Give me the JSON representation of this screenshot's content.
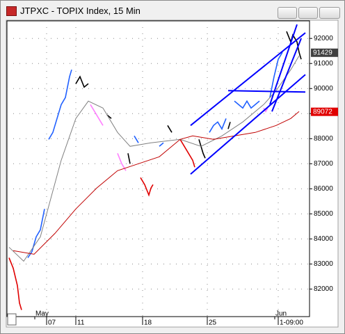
{
  "chart_data": {
    "type": "line",
    "title": "JTPXC - TOPIX Index, 15 Min",
    "xlim": [
      0,
      145
    ],
    "ylim": [
      80900,
      92700
    ],
    "yticks": [
      82000,
      83000,
      84000,
      85000,
      86000,
      87000,
      88000,
      89000,
      90000,
      91000,
      92000
    ],
    "xticks": [
      {
        "value": 19,
        "label": "07"
      },
      {
        "value": 33,
        "label": "11"
      },
      {
        "value": 65,
        "label": "18"
      },
      {
        "value": 96,
        "label": "25"
      },
      {
        "value": 130,
        "label": "1-09:00"
      }
    ],
    "month_labels": [
      {
        "value": 15,
        "label": "May"
      },
      {
        "value": 130,
        "label": "Jun"
      }
    ],
    "grid": true,
    "series": [
      {
        "color": "#e00000",
        "x": [
          1,
          3,
          5,
          6,
          7,
          8,
          64,
          66,
          68,
          69,
          70,
          71,
          83,
          85,
          89,
          90
        ],
        "values": [
          83250,
          82833,
          82139,
          81444,
          81167,
          null,
          86444,
          86167,
          85750,
          86028,
          86167,
          null,
          87972,
          87694,
          87139,
          86861
        ]
      },
      {
        "color": "#000000",
        "x": [
          33,
          35,
          37,
          39,
          40,
          48,
          50,
          51,
          58,
          59,
          60,
          77,
          79,
          80,
          92,
          94,
          95,
          96,
          106,
          107,
          108,
          134,
          136,
          137,
          139,
          140,
          141
        ],
        "values": [
          90194,
          90472,
          90056,
          90194,
          null,
          88944,
          88806,
          null,
          87417,
          87000,
          null,
          88528,
          88250,
          null,
          87972,
          87417,
          87222,
          null,
          88389,
          88667,
          null,
          92278,
          91861,
          92139,
          91861,
          91444,
          91167
        ]
      },
      {
        "color": "#2060ff",
        "x": [
          10,
          12,
          14,
          16,
          18,
          19,
          20,
          22,
          24,
          26,
          28,
          30,
          31,
          32,
          61,
          63,
          64,
          73,
          75,
          76,
          97,
          99,
          101,
          103,
          105,
          106,
          109,
          111,
          113,
          115,
          117,
          119,
          121,
          122,
          126,
          128,
          130,
          132
        ],
        "values": [
          83250,
          83500,
          84083,
          84361,
          85194,
          null,
          87972,
          88250,
          88806,
          89361,
          89639,
          90472,
          90750,
          null,
          88111,
          87833,
          null,
          87694,
          87833,
          null,
          88250,
          88528,
          88667,
          88389,
          88806,
          null,
          89500,
          89361,
          89222,
          89500,
          89222,
          89361,
          89500,
          null,
          89639,
          90472,
          91167,
          91444
        ]
      },
      {
        "color": "#ff80ff",
        "x": [
          40,
          42,
          44,
          46,
          47,
          53,
          55,
          57,
          58,
          123,
          124,
          125
        ],
        "values": [
          89361,
          89083,
          88806,
          88528,
          null,
          87417,
          87000,
          86722,
          null,
          89222,
          89083,
          89222
        ]
      },
      {
        "color": "#808080",
        "x": [
          1,
          8,
          16,
          26,
          33,
          39,
          46,
          53,
          59,
          69,
          83,
          93,
          103,
          113,
          123,
          129,
          136,
          140
        ],
        "values": [
          83667,
          83111,
          84083,
          87139,
          88806,
          89500,
          89222,
          88250,
          87694,
          87833,
          87972,
          87694,
          88111,
          88667,
          89361,
          89917,
          90750,
          91306
        ]
      },
      {
        "color": "#c00000",
        "x": [
          3,
          13,
          23,
          33,
          43,
          53,
          63,
          73,
          83,
          89,
          99,
          109,
          119,
          129,
          136,
          140
        ],
        "values": [
          83528,
          83389,
          84222,
          85194,
          86028,
          86722,
          87000,
          87278,
          87972,
          88111,
          87972,
          88111,
          88250,
          88528,
          88806,
          89083
        ]
      }
    ],
    "trendlines": [
      {
        "color": "#0000ff",
        "x": [
          88,
          143
        ],
        "values": [
          88528,
          92222
        ]
      },
      {
        "color": "#0000ff",
        "x": [
          88,
          143
        ],
        "values": [
          86583,
          90556
        ]
      },
      {
        "color": "#0000ff",
        "x": [
          106,
          143
        ],
        "values": [
          89917,
          89861
        ]
      },
      {
        "color": "#0000ff",
        "x": [
          126,
          139
        ],
        "values": [
          89361,
          92556
        ]
      },
      {
        "color": "#0000ff",
        "x": [
          127,
          141
        ],
        "values": [
          89083,
          92000
        ]
      }
    ],
    "price_labels": [
      {
        "value": 91429,
        "color": "#404040"
      },
      {
        "value": 89072,
        "color": "#e00000"
      }
    ]
  }
}
